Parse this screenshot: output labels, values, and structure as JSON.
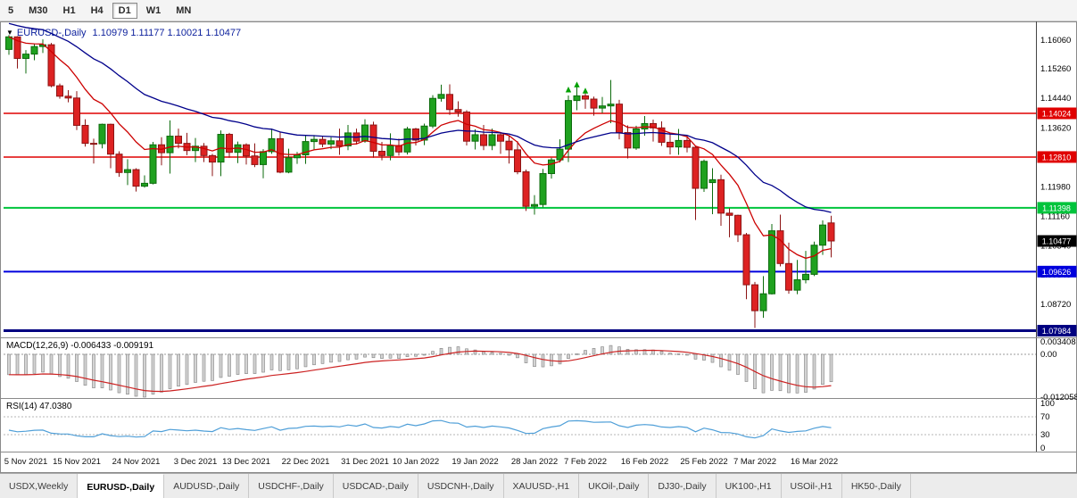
{
  "toolbar": {
    "timeframes": [
      "5",
      "M30",
      "H1",
      "H4",
      "D1",
      "W1",
      "MN"
    ],
    "active": "D1"
  },
  "header": {
    "dropdown_icon": "▼",
    "symbol": "EURUSD-,Daily",
    "ohlc": "1.10979 1.11177 1.10021 1.10477"
  },
  "chart_data": {
    "type": "candlestick",
    "symbol": "EURUSD-,Daily",
    "ohlc_current": {
      "open": "1.10979",
      "high": "1.11177",
      "low": "1.10021",
      "close": "1.10477"
    },
    "colors": {
      "bull": "#1fa11f",
      "bull_stroke": "#0c6b0c",
      "bear": "#dd2222",
      "bear_stroke": "#8c1414",
      "ma_fast": "#cc0000",
      "ma_slow": "#00008b",
      "macd_hist_fill": "#d4d4d4",
      "macd_hist_stroke": "#7f7f7f",
      "macd_signal": "#cc2222",
      "rsi_line": "#4f9fd8"
    },
    "overlays": [
      {
        "name": "ma-fast",
        "method": "ema",
        "period": 10
      },
      {
        "name": "ma-slow",
        "method": "ema",
        "period": 30
      }
    ],
    "levels": [
      {
        "label": "1.14024",
        "value": 1.14024,
        "color": "#e00000",
        "width": 1.5
      },
      {
        "label": "1.12810",
        "value": 1.1281,
        "color": "#e00000",
        "width": 1.5
      },
      {
        "label": "1.11398",
        "value": 1.11398,
        "color": "#00c43c",
        "width": 2
      },
      {
        "label": "1.09626",
        "value": 1.09626,
        "color": "#0000dd",
        "width": 2
      },
      {
        "label": "1.07984",
        "value": 1.07984,
        "color": "#000080",
        "width": 3
      }
    ],
    "current_price": {
      "label": "1.10477",
      "bg": "#000000",
      "text_color": "#ffffff"
    },
    "y_axis_ticks": [
      "1.16060",
      "1.15260",
      "1.14440",
      "1.13620",
      "1.12810",
      "1.11980",
      "1.11160",
      "1.10340",
      "1.09540",
      "1.08720",
      "1.07900"
    ],
    "x_axis_ticks": [
      {
        "text": "5 Nov 2021",
        "idx": 2
      },
      {
        "text": "15 Nov 2021",
        "idx": 8
      },
      {
        "text": "24 Nov 2021",
        "idx": 15
      },
      {
        "text": "3 Dec 2021",
        "idx": 22
      },
      {
        "text": "13 Dec 2021",
        "idx": 28
      },
      {
        "text": "22 Dec 2021",
        "idx": 35
      },
      {
        "text": "31 Dec 2021",
        "idx": 42
      },
      {
        "text": "10 Jan 2022",
        "idx": 48
      },
      {
        "text": "19 Jan 2022",
        "idx": 55
      },
      {
        "text": "28 Jan 2022",
        "idx": 62
      },
      {
        "text": "7 Feb 2022",
        "idx": 68
      },
      {
        "text": "16 Feb 2022",
        "idx": 75
      },
      {
        "text": "25 Feb 2022",
        "idx": 82
      },
      {
        "text": "7 Mar 2022",
        "idx": 88
      },
      {
        "text": "16 Mar 2022",
        "idx": 95
      }
    ],
    "markers": [
      {
        "idx": 66,
        "price": 1.1468,
        "color": "#00a000"
      },
      {
        "idx": 67,
        "price": 1.1482,
        "color": "#00a000"
      },
      {
        "idx": 68,
        "price": 1.1465,
        "color": "#00a000"
      }
    ],
    "candles": [
      [
        1.158,
        1.162,
        1.1565,
        1.1615
      ],
      [
        1.1615,
        1.1617,
        1.1527,
        1.1555
      ],
      [
        1.1555,
        1.1578,
        1.1513,
        1.1567
      ],
      [
        1.1567,
        1.1595,
        1.155,
        1.1588
      ],
      [
        1.1588,
        1.1608,
        1.157,
        1.1593
      ],
      [
        1.1593,
        1.1598,
        1.1475,
        1.1479
      ],
      [
        1.1479,
        1.1485,
        1.1443,
        1.145
      ],
      [
        1.145,
        1.1467,
        1.1433,
        1.1445
      ],
      [
        1.1445,
        1.1464,
        1.1356,
        1.1369
      ],
      [
        1.1369,
        1.1386,
        1.131,
        1.1319
      ],
      [
        1.1319,
        1.1332,
        1.1263,
        1.1318
      ],
      [
        1.1318,
        1.1374,
        1.1305,
        1.1372
      ],
      [
        1.1372,
        1.1374,
        1.125,
        1.1289
      ],
      [
        1.1289,
        1.1297,
        1.1226,
        1.1238
      ],
      [
        1.1238,
        1.1275,
        1.1203,
        1.1246
      ],
      [
        1.1246,
        1.125,
        1.1185,
        1.12
      ],
      [
        1.12,
        1.123,
        1.1196,
        1.1208
      ],
      [
        1.1208,
        1.1323,
        1.1205,
        1.1315
      ],
      [
        1.1315,
        1.1336,
        1.1258,
        1.1293
      ],
      [
        1.1293,
        1.1383,
        1.1235,
        1.1339
      ],
      [
        1.1339,
        1.136,
        1.1305,
        1.1319
      ],
      [
        1.1319,
        1.1348,
        1.1286,
        1.1299
      ],
      [
        1.1299,
        1.1334,
        1.1267,
        1.1311
      ],
      [
        1.1311,
        1.132,
        1.1267,
        1.1285
      ],
      [
        1.1285,
        1.129,
        1.1228,
        1.1267
      ],
      [
        1.1267,
        1.1355,
        1.1228,
        1.1344
      ],
      [
        1.1344,
        1.1348,
        1.1279,
        1.1294
      ],
      [
        1.1294,
        1.1324,
        1.1264,
        1.1315
      ],
      [
        1.1315,
        1.1319,
        1.126,
        1.1284
      ],
      [
        1.1284,
        1.1319,
        1.1253,
        1.126
      ],
      [
        1.126,
        1.1303,
        1.1222,
        1.1296
      ],
      [
        1.1296,
        1.136,
        1.129,
        1.1332
      ],
      [
        1.1332,
        1.135,
        1.1236,
        1.1239
      ],
      [
        1.1239,
        1.1304,
        1.1236,
        1.1279
      ],
      [
        1.1279,
        1.1295,
        1.1262,
        1.1287
      ],
      [
        1.1287,
        1.1343,
        1.1262,
        1.1324
      ],
      [
        1.1324,
        1.1342,
        1.1302,
        1.133
      ],
      [
        1.133,
        1.1338,
        1.1308,
        1.1317
      ],
      [
        1.1317,
        1.1336,
        1.1303,
        1.1326
      ],
      [
        1.1326,
        1.136,
        1.1287,
        1.1312
      ],
      [
        1.1312,
        1.137,
        1.13,
        1.1348
      ],
      [
        1.1348,
        1.136,
        1.1316,
        1.1325
      ],
      [
        1.1325,
        1.1386,
        1.1321,
        1.137
      ],
      [
        1.137,
        1.1379,
        1.1279,
        1.1297
      ],
      [
        1.1297,
        1.1323,
        1.1272,
        1.1285
      ],
      [
        1.1285,
        1.1347,
        1.1272,
        1.1313
      ],
      [
        1.1313,
        1.1332,
        1.1285,
        1.1295
      ],
      [
        1.1295,
        1.1365,
        1.1288,
        1.1359
      ],
      [
        1.1359,
        1.1362,
        1.1313,
        1.1328
      ],
      [
        1.1328,
        1.1374,
        1.1314,
        1.1367
      ],
      [
        1.1367,
        1.1453,
        1.1361,
        1.1444
      ],
      [
        1.1444,
        1.1482,
        1.1435,
        1.1455
      ],
      [
        1.1455,
        1.1483,
        1.1398,
        1.1413
      ],
      [
        1.1413,
        1.1436,
        1.1393,
        1.1406
      ],
      [
        1.1406,
        1.1411,
        1.1313,
        1.1325
      ],
      [
        1.1325,
        1.1358,
        1.1302,
        1.1343
      ],
      [
        1.1343,
        1.137,
        1.13,
        1.1313
      ],
      [
        1.1313,
        1.136,
        1.13,
        1.1343
      ],
      [
        1.1343,
        1.1349,
        1.129,
        1.1325
      ],
      [
        1.1325,
        1.1339,
        1.1263,
        1.1301
      ],
      [
        1.1301,
        1.1325,
        1.1233,
        1.124
      ],
      [
        1.124,
        1.1246,
        1.1131,
        1.1144
      ],
      [
        1.1144,
        1.1175,
        1.1121,
        1.1149
      ],
      [
        1.1149,
        1.1248,
        1.1141,
        1.1235
      ],
      [
        1.1235,
        1.1279,
        1.1221,
        1.1273
      ],
      [
        1.1273,
        1.133,
        1.1266,
        1.1303
      ],
      [
        1.1303,
        1.1452,
        1.1267,
        1.1438
      ],
      [
        1.1438,
        1.1484,
        1.1411,
        1.1451
      ],
      [
        1.1451,
        1.146,
        1.1415,
        1.1442
      ],
      [
        1.1442,
        1.1449,
        1.1396,
        1.1417
      ],
      [
        1.1417,
        1.1448,
        1.1403,
        1.1423
      ],
      [
        1.1423,
        1.1495,
        1.1375,
        1.1428
      ],
      [
        1.1428,
        1.144,
        1.133,
        1.1349
      ],
      [
        1.1349,
        1.1369,
        1.1277,
        1.1306
      ],
      [
        1.1306,
        1.1368,
        1.1301,
        1.1359
      ],
      [
        1.1359,
        1.1395,
        1.134,
        1.1374
      ],
      [
        1.1374,
        1.1385,
        1.1324,
        1.1362
      ],
      [
        1.1362,
        1.138,
        1.1312,
        1.1322
      ],
      [
        1.1322,
        1.1344,
        1.1288,
        1.1309
      ],
      [
        1.1309,
        1.1359,
        1.1287,
        1.1327
      ],
      [
        1.1327,
        1.1342,
        1.1294,
        1.1308
      ],
      [
        1.1308,
        1.1311,
        1.1106,
        1.1194
      ],
      [
        1.1194,
        1.1274,
        1.1184,
        1.1269
      ],
      [
        1.121,
        1.125,
        1.1122,
        1.1218
      ],
      [
        1.1218,
        1.1232,
        1.109,
        1.1125
      ],
      [
        1.1125,
        1.1139,
        1.1058,
        1.1119
      ],
      [
        1.1119,
        1.1121,
        1.1045,
        1.1065
      ],
      [
        1.1065,
        1.107,
        1.0886,
        1.0926
      ],
      [
        1.0926,
        1.0934,
        1.0806,
        1.0854
      ],
      [
        1.0854,
        1.095,
        1.0834,
        1.0901
      ],
      [
        1.0901,
        1.1095,
        1.0899,
        1.1076
      ],
      [
        1.1076,
        1.1121,
        1.0977,
        1.0985
      ],
      [
        1.0985,
        1.1043,
        1.0901,
        1.0911
      ],
      [
        1.0911,
        1.0995,
        1.09,
        1.094
      ],
      [
        1.094,
        1.102,
        1.093,
        1.0955
      ],
      [
        1.0955,
        1.1046,
        1.095,
        1.1036
      ],
      [
        1.1036,
        1.1105,
        1.1009,
        1.1092
      ],
      [
        1.10979,
        1.11177,
        1.10021,
        1.10477
      ]
    ],
    "sub_charts": [
      {
        "name": "macd",
        "label": "MACD(12,26,9) -0.006433 -0.009191",
        "params": [
          12,
          26,
          9
        ],
        "main_value": "-0.006433",
        "signal_value": "-0.009191",
        "axis_ticks": [
          "0.003408",
          "0.00",
          "-0.012058"
        ]
      },
      {
        "name": "rsi",
        "label": "RSI(14) 47.0380",
        "period": 14,
        "value": "47.0380",
        "axis_ticks": [
          "100",
          "70",
          "30",
          "0"
        ],
        "levels": [
          70,
          30
        ]
      }
    ]
  },
  "tabs": {
    "items": [
      "USDX,Weekly",
      "EURUSD-,Daily",
      "AUDUSD-,Daily",
      "USDCHF-,Daily",
      "USDCAD-,Daily",
      "USDCNH-,Daily",
      "XAUUSD-,H1",
      "UKOil-,Daily",
      "DJ30-,Daily",
      "UK100-,H1",
      "USOil-,H1",
      "HK50-,Daily"
    ],
    "active": "EURUSD-,Daily"
  }
}
